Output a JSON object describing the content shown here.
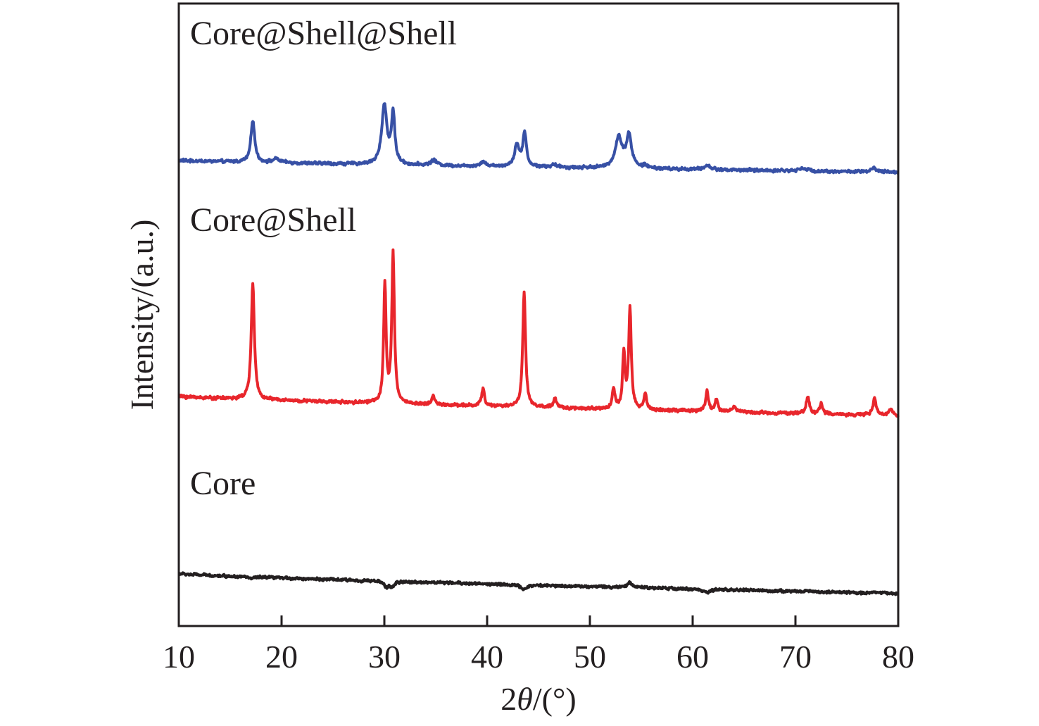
{
  "chart_data": {
    "type": "line",
    "title": "",
    "xlabel": "2θ/(°)",
    "xlabel_parts": {
      "prefix": "2",
      "symbol": "θ",
      "suffix": "/(°)"
    },
    "ylabel": "Intensity/(a.u.)",
    "xlim": [
      10,
      80
    ],
    "ylim": [
      0,
      100
    ],
    "y_units_note": "arbitrary units, no y tick labels",
    "x_ticks": [
      10,
      20,
      30,
      40,
      50,
      60,
      70,
      80
    ],
    "x_tick_labels": [
      "10",
      "20",
      "30",
      "40",
      "50",
      "60",
      "70",
      "80"
    ],
    "grid": false,
    "legend": "none; series labelled inline at upper-left of each trace",
    "series": [
      {
        "name": "Core@Shell@Shell",
        "color": "#3750a5",
        "baseline": {
          "start": 74.8,
          "end": 72.9
        },
        "noise": 0.35,
        "peaks": [
          {
            "x": 17.2,
            "y": 81.3,
            "w": 0.22
          },
          {
            "x": 19.5,
            "y": 75.0,
            "w": 0.4
          },
          {
            "x": 30.0,
            "y": 83.6,
            "w": 0.3
          },
          {
            "x": 30.85,
            "y": 82.1,
            "w": 0.2
          },
          {
            "x": 34.8,
            "y": 74.8,
            "w": 0.35
          },
          {
            "x": 39.6,
            "y": 74.6,
            "w": 0.3
          },
          {
            "x": 42.9,
            "y": 77.3,
            "w": 0.28
          },
          {
            "x": 43.65,
            "y": 79.1,
            "w": 0.2
          },
          {
            "x": 46.5,
            "y": 74.0,
            "w": 0.35
          },
          {
            "x": 52.8,
            "y": 78.4,
            "w": 0.4
          },
          {
            "x": 53.8,
            "y": 78.7,
            "w": 0.3
          },
          {
            "x": 55.4,
            "y": 73.9,
            "w": 0.25
          },
          {
            "x": 61.4,
            "y": 74.0,
            "w": 0.35
          },
          {
            "x": 70.7,
            "y": 73.6,
            "w": 0.4
          },
          {
            "x": 77.6,
            "y": 73.5,
            "w": 0.3
          }
        ]
      },
      {
        "name": "Core@Shell",
        "color": "#e8262c",
        "baseline": {
          "start": 36.9,
          "end": 33.8
        },
        "noise": 0.35,
        "peaks": [
          {
            "x": 17.2,
            "y": 55.0,
            "w": 0.18
          },
          {
            "x": 30.05,
            "y": 54.6,
            "w": 0.14
          },
          {
            "x": 30.85,
            "y": 59.8,
            "w": 0.15
          },
          {
            "x": 34.75,
            "y": 36.9,
            "w": 0.18
          },
          {
            "x": 39.6,
            "y": 38.2,
            "w": 0.16
          },
          {
            "x": 43.6,
            "y": 53.8,
            "w": 0.16
          },
          {
            "x": 46.6,
            "y": 36.4,
            "w": 0.18
          },
          {
            "x": 52.3,
            "y": 38.1,
            "w": 0.16
          },
          {
            "x": 53.3,
            "y": 43.7,
            "w": 0.14
          },
          {
            "x": 53.9,
            "y": 50.8,
            "w": 0.15
          },
          {
            "x": 55.4,
            "y": 37.1,
            "w": 0.16
          },
          {
            "x": 61.4,
            "y": 37.8,
            "w": 0.16
          },
          {
            "x": 62.3,
            "y": 36.4,
            "w": 0.16
          },
          {
            "x": 64.0,
            "y": 35.1,
            "w": 0.3
          },
          {
            "x": 71.2,
            "y": 36.9,
            "w": 0.18
          },
          {
            "x": 72.5,
            "y": 35.6,
            "w": 0.18
          },
          {
            "x": 77.7,
            "y": 36.5,
            "w": 0.18
          },
          {
            "x": 79.3,
            "y": 34.9,
            "w": 0.18
          }
        ]
      },
      {
        "name": "Core",
        "color": "#231f20",
        "baseline": {
          "start": 8.4,
          "end": 5.2
        },
        "noise": 0.3,
        "peaks": [
          {
            "x": 17.1,
            "y": 7.6,
            "w": 0.25
          },
          {
            "x": 30.2,
            "y": 6.4,
            "w": 0.3
          },
          {
            "x": 30.75,
            "y": 6.4,
            "w": 0.25
          },
          {
            "x": 43.5,
            "y": 5.8,
            "w": 0.3
          },
          {
            "x": 53.9,
            "y": 6.9,
            "w": 0.35
          },
          {
            "x": 61.4,
            "y": 5.3,
            "w": 0.35
          },
          {
            "x": 71.2,
            "y": 5.7,
            "w": 0.35
          },
          {
            "x": 77.9,
            "y": 5.5,
            "w": 0.4
          }
        ]
      }
    ]
  }
}
